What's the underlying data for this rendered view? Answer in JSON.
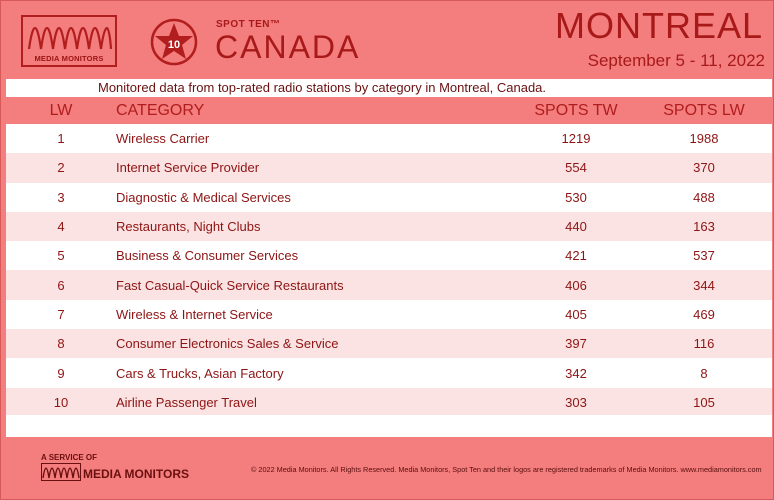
{
  "header": {
    "logo_text": "MEDIA MONITORS",
    "badge_number": "10",
    "spot_ten": "SPOT TEN™",
    "country": "CANADA",
    "market": "MONTREAL",
    "dates": "September 5 - 11, 2022"
  },
  "subtitle": "Monitored data from top-rated radio stations by category in Montreal, Canada.",
  "table": {
    "headers": {
      "lw": "LW",
      "category": "CATEGORY",
      "spots_tw": "SPOTS TW",
      "spots_lw": "SPOTS LW"
    },
    "rows": [
      {
        "lw": "1",
        "category": "Wireless Carrier",
        "spots_tw": "1219",
        "spots_lw": "1988"
      },
      {
        "lw": "2",
        "category": "Internet Service Provider",
        "spots_tw": "554",
        "spots_lw": "370"
      },
      {
        "lw": "3",
        "category": "Diagnostic & Medical Services",
        "spots_tw": "530",
        "spots_lw": "488"
      },
      {
        "lw": "4",
        "category": "Restaurants, Night Clubs",
        "spots_tw": "440",
        "spots_lw": "163"
      },
      {
        "lw": "5",
        "category": "Business & Consumer Services",
        "spots_tw": "421",
        "spots_lw": "537"
      },
      {
        "lw": "6",
        "category": "Fast Casual-Quick Service Restaurants",
        "spots_tw": "406",
        "spots_lw": "344"
      },
      {
        "lw": "7",
        "category": "Wireless & Internet Service",
        "spots_tw": "405",
        "spots_lw": "469"
      },
      {
        "lw": "8",
        "category": "Consumer Electronics Sales & Service",
        "spots_tw": "397",
        "spots_lw": "116"
      },
      {
        "lw": "9",
        "category": "Cars & Trucks, Asian Factory",
        "spots_tw": "342",
        "spots_lw": "8"
      },
      {
        "lw": "10",
        "category": "Airline Passenger Travel",
        "spots_tw": "303",
        "spots_lw": "105"
      }
    ]
  },
  "footer": {
    "service_of": "A SERVICE OF",
    "brand": "MEDIA MONITORS",
    "copyright": "© 2022 Media Monitors. All Rights Reserved. Media Monitors, Spot Ten and their logos are registered trademarks of Media Monitors. www.mediamonitors.com"
  },
  "colors": {
    "background": "#f47d7d",
    "accent": "#a81a1a",
    "row_alt": "#fbe3e3"
  }
}
